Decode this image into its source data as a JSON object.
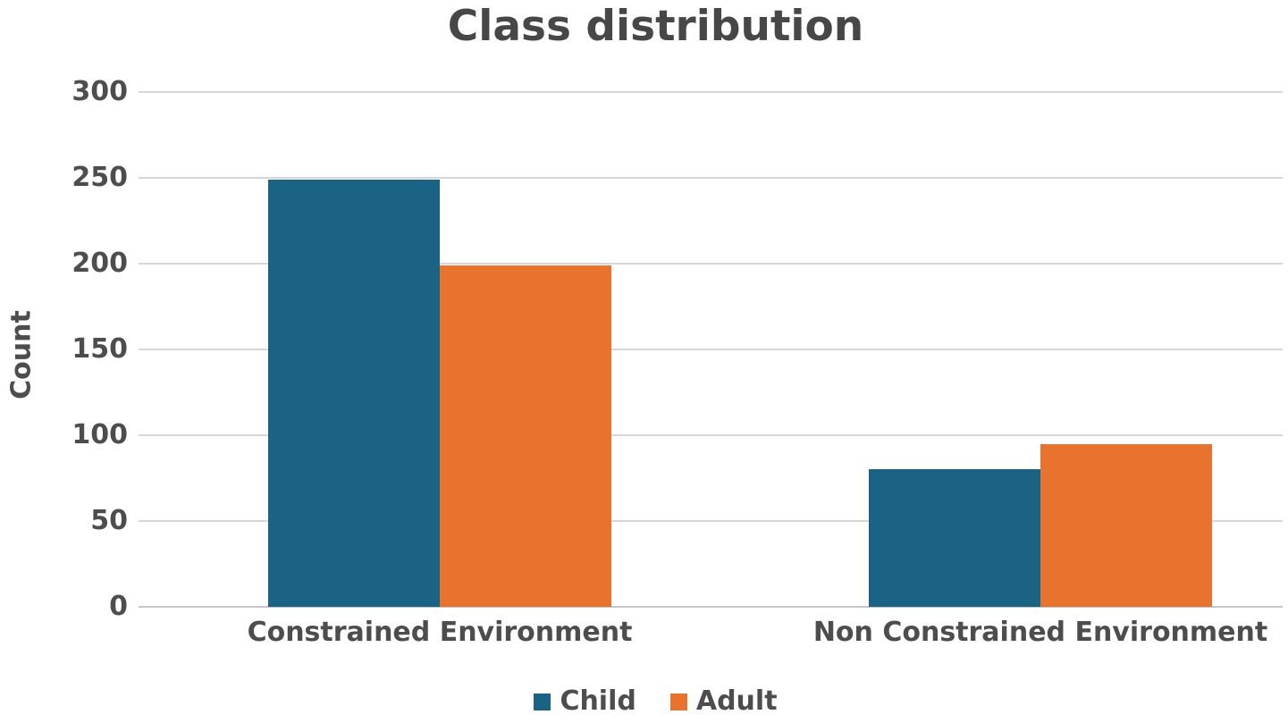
{
  "chart_data": {
    "type": "bar",
    "title": "Class distribution",
    "ylabel": "Count",
    "xlabel": "",
    "categories": [
      "Constrained Environment",
      "Non Constrained Environment"
    ],
    "series": [
      {
        "name": "Child",
        "color": "#1a6384",
        "values": [
          249,
          80
        ]
      },
      {
        "name": "Adult",
        "color": "#e8732f",
        "values": [
          199,
          95
        ]
      }
    ],
    "ylim": [
      0,
      300
    ],
    "ytick_step": 50,
    "yticks": [
      "0",
      "50",
      "100",
      "150",
      "200",
      "250",
      "300"
    ],
    "grid": true,
    "legend_position": "bottom",
    "legend": [
      "Child",
      "Adult"
    ],
    "text_color": "#4d4d4d",
    "gridline_color": "#d7d7d7"
  }
}
